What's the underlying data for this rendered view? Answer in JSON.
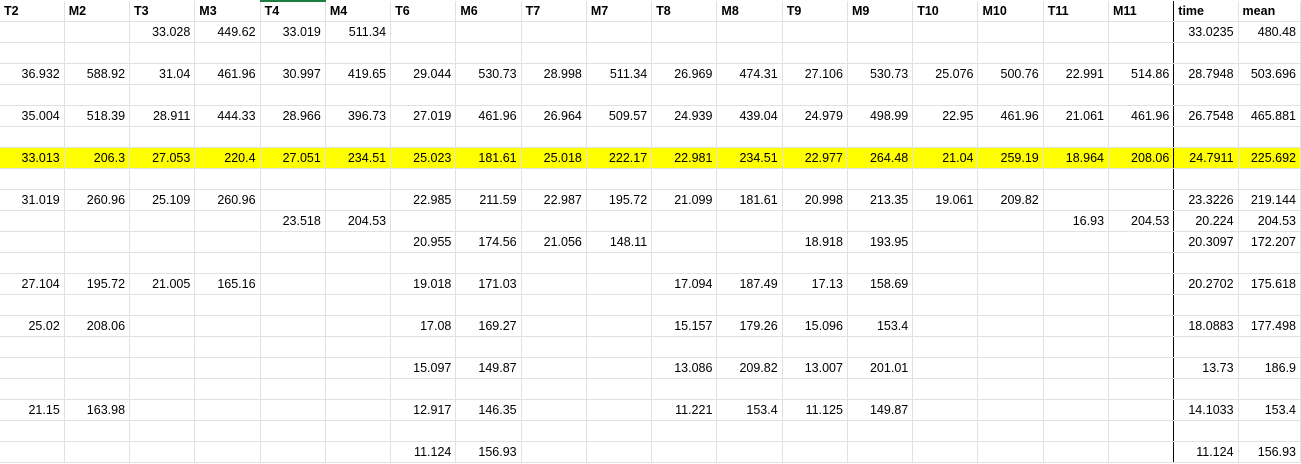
{
  "sheet": {
    "headers": [
      "T2",
      "M2",
      "T3",
      "M3",
      "T4",
      "M4",
      "T6",
      "M6",
      "T7",
      "M7",
      "T8",
      "M8",
      "T9",
      "M9",
      "T10",
      "M10",
      "T11",
      "M11",
      "time",
      "mean"
    ],
    "rows": [
      {
        "highlight": false,
        "cells": [
          "",
          "",
          "33.028",
          "449.62",
          "33.019",
          "511.34",
          "",
          "",
          "",
          "",
          "",
          "",
          "",
          "",
          "",
          "",
          "",
          "",
          "33.0235",
          "480.48"
        ]
      },
      {
        "highlight": false,
        "cells": [
          "",
          "",
          "",
          "",
          "",
          "",
          "",
          "",
          "",
          "",
          "",
          "",
          "",
          "",
          "",
          "",
          "",
          "",
          "",
          ""
        ]
      },
      {
        "highlight": false,
        "cells": [
          "36.932",
          "588.92",
          "31.04",
          "461.96",
          "30.997",
          "419.65",
          "29.044",
          "530.73",
          "28.998",
          "511.34",
          "26.969",
          "474.31",
          "27.106",
          "530.73",
          "25.076",
          "500.76",
          "22.991",
          "514.86",
          "28.7948",
          "503.696"
        ]
      },
      {
        "highlight": false,
        "cells": [
          "",
          "",
          "",
          "",
          "",
          "",
          "",
          "",
          "",
          "",
          "",
          "",
          "",
          "",
          "",
          "",
          "",
          "",
          "",
          ""
        ]
      },
      {
        "highlight": false,
        "cells": [
          "35.004",
          "518.39",
          "28.911",
          "444.33",
          "28.966",
          "396.73",
          "27.019",
          "461.96",
          "26.964",
          "509.57",
          "24.939",
          "439.04",
          "24.979",
          "498.99",
          "22.95",
          "461.96",
          "21.061",
          "461.96",
          "26.7548",
          "465.881"
        ]
      },
      {
        "highlight": false,
        "cells": [
          "",
          "",
          "",
          "",
          "",
          "",
          "",
          "",
          "",
          "",
          "",
          "",
          "",
          "",
          "",
          "",
          "",
          "",
          "",
          ""
        ]
      },
      {
        "highlight": true,
        "cells": [
          "33.013",
          "206.3",
          "27.053",
          "220.4",
          "27.051",
          "234.51",
          "25.023",
          "181.61",
          "25.018",
          "222.17",
          "22.981",
          "234.51",
          "22.977",
          "264.48",
          "21.04",
          "259.19",
          "18.964",
          "208.06",
          "24.7911",
          "225.692"
        ]
      },
      {
        "highlight": false,
        "cells": [
          "",
          "",
          "",
          "",
          "",
          "",
          "",
          "",
          "",
          "",
          "",
          "",
          "",
          "",
          "",
          "",
          "",
          "",
          "",
          ""
        ]
      },
      {
        "highlight": false,
        "cells": [
          "31.019",
          "260.96",
          "25.109",
          "260.96",
          "",
          "",
          "22.985",
          "211.59",
          "22.987",
          "195.72",
          "21.099",
          "181.61",
          "20.998",
          "213.35",
          "19.061",
          "209.82",
          "",
          "",
          "23.3226",
          "219.144"
        ]
      },
      {
        "highlight": false,
        "cells": [
          "",
          "",
          "",
          "",
          "23.518",
          "204.53",
          "",
          "",
          "",
          "",
          "",
          "",
          "",
          "",
          "",
          "",
          "16.93",
          "204.53",
          "20.224",
          "204.53"
        ]
      },
      {
        "highlight": false,
        "cells": [
          "",
          "",
          "",
          "",
          "",
          "",
          "20.955",
          "174.56",
          "21.056",
          "148.11",
          "",
          "",
          "18.918",
          "193.95",
          "",
          "",
          "",
          "",
          "20.3097",
          "172.207"
        ]
      },
      {
        "highlight": false,
        "cells": [
          "",
          "",
          "",
          "",
          "",
          "",
          "",
          "",
          "",
          "",
          "",
          "",
          "",
          "",
          "",
          "",
          "",
          "",
          "",
          ""
        ]
      },
      {
        "highlight": false,
        "cells": [
          "27.104",
          "195.72",
          "21.005",
          "165.16",
          "",
          "",
          "19.018",
          "171.03",
          "",
          "",
          "17.094",
          "187.49",
          "17.13",
          "158.69",
          "",
          "",
          "",
          "",
          "20.2702",
          "175.618"
        ]
      },
      {
        "highlight": false,
        "cells": [
          "",
          "",
          "",
          "",
          "",
          "",
          "",
          "",
          "",
          "",
          "",
          "",
          "",
          "",
          "",
          "",
          "",
          "",
          "",
          ""
        ]
      },
      {
        "highlight": false,
        "cells": [
          "25.02",
          "208.06",
          "",
          "",
          "",
          "",
          "17.08",
          "169.27",
          "",
          "",
          "15.157",
          "179.26",
          "15.096",
          "153.4",
          "",
          "",
          "",
          "",
          "18.0883",
          "177.498"
        ]
      },
      {
        "highlight": false,
        "cells": [
          "",
          "",
          "",
          "",
          "",
          "",
          "",
          "",
          "",
          "",
          "",
          "",
          "",
          "",
          "",
          "",
          "",
          "",
          "",
          ""
        ]
      },
      {
        "highlight": false,
        "cells": [
          "",
          "",
          "",
          "",
          "",
          "",
          "15.097",
          "149.87",
          "",
          "",
          "13.086",
          "209.82",
          "13.007",
          "201.01",
          "",
          "",
          "",
          "",
          "13.73",
          "186.9"
        ]
      },
      {
        "highlight": false,
        "cells": [
          "",
          "",
          "",
          "",
          "",
          "",
          "",
          "",
          "",
          "",
          "",
          "",
          "",
          "",
          "",
          "",
          "",
          "",
          "",
          ""
        ]
      },
      {
        "highlight": false,
        "cells": [
          "21.15",
          "163.98",
          "",
          "",
          "",
          "",
          "12.917",
          "146.35",
          "",
          "",
          "11.221",
          "153.4",
          "11.125",
          "149.87",
          "",
          "",
          "",
          "",
          "14.1033",
          "153.4"
        ]
      },
      {
        "highlight": false,
        "cells": [
          "",
          "",
          "",
          "",
          "",
          "",
          "",
          "",
          "",
          "",
          "",
          "",
          "",
          "",
          "",
          "",
          "",
          "",
          "",
          ""
        ]
      },
      {
        "highlight": false,
        "cells": [
          "",
          "",
          "",
          "",
          "",
          "",
          "11.124",
          "156.93",
          "",
          "",
          "",
          "",
          "",
          "",
          "",
          "",
          "",
          "",
          "11.124",
          "156.93"
        ]
      }
    ]
  }
}
